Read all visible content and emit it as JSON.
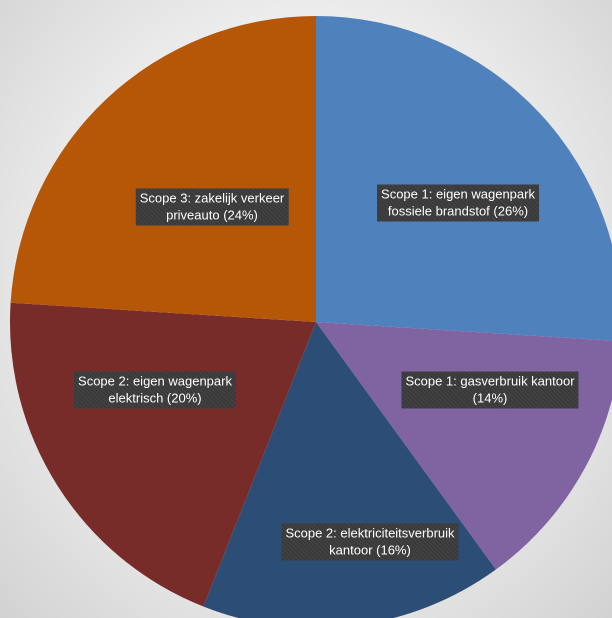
{
  "chart_data": {
    "type": "pie",
    "title": "",
    "slices": [
      {
        "label": "Scope 1: eigen wagenpark\nfossiele brandstof (26%)",
        "value": 26,
        "color": "#4f81bd"
      },
      {
        "label": "Scope 1: gasverbruik kantoor\n(14%)",
        "value": 14,
        "color": "#8064a2"
      },
      {
        "label": "Scope 2: elektriciteitsverbruik\nkantoor (16%)",
        "value": 16,
        "color": "#2c4d75"
      },
      {
        "label": "Scope 2: eigen wagenpark\nelektrisch (20%)",
        "value": 20,
        "color": "#772c2a"
      },
      {
        "label": "Scope 3: zakelijk verkeer\npriveauto (24%)",
        "value": 24,
        "color": "#b65708"
      }
    ],
    "start_angle": "12 o'clock",
    "direction": "clockwise",
    "legend": "none"
  }
}
